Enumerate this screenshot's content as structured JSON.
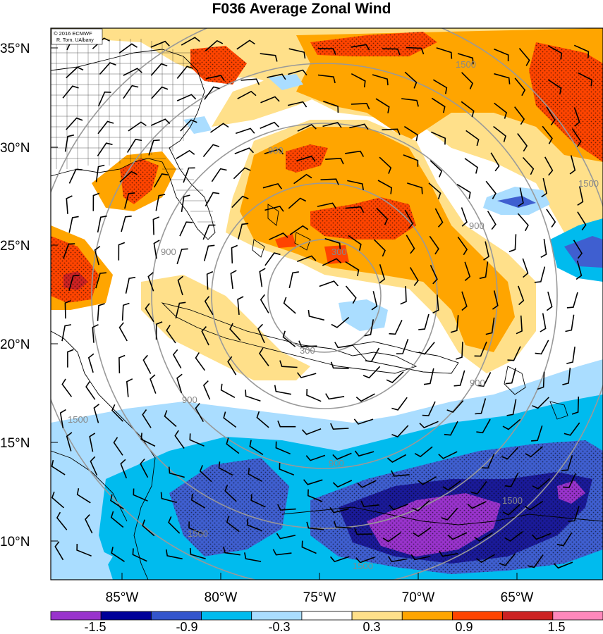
{
  "title": "F036 Average Zonal Wind",
  "credit": [
    "© 2016 ECMWF",
    "R. Torn, UAlbany"
  ],
  "latitude_labels": [
    "35°N",
    "30°N",
    "25°N",
    "20°N",
    "15°N",
    "10°N"
  ],
  "longitude_labels": [
    "85°W",
    "80°W",
    "75°W",
    "70°W",
    "65°W"
  ],
  "ring_labels": [
    "300",
    "900",
    "1500"
  ],
  "colorbar": {
    "labels": [
      "-1.5",
      "-0.9",
      "-0.3",
      "0.3",
      "0.9",
      "1.5"
    ],
    "colors": [
      "#9933cc",
      "#000099",
      "#3355cc",
      "#00bbee",
      "#aaddff",
      "#ffffff",
      "#ffe08a",
      "#ffa500",
      "#ff4400",
      "#cc2222",
      "#ff88bb"
    ]
  },
  "palette": {
    "neg3": "#9933cc",
    "neg2": "#1a1a99",
    "neg1": "#3f5fd0",
    "neg0b": "#00bbee",
    "neg0a": "#aaddff",
    "pos0a": "#ffe08a",
    "pos1": "#ffa500",
    "pos2": "#ff4400",
    "pos3": "#cc2222",
    "ring": "#999999"
  }
}
